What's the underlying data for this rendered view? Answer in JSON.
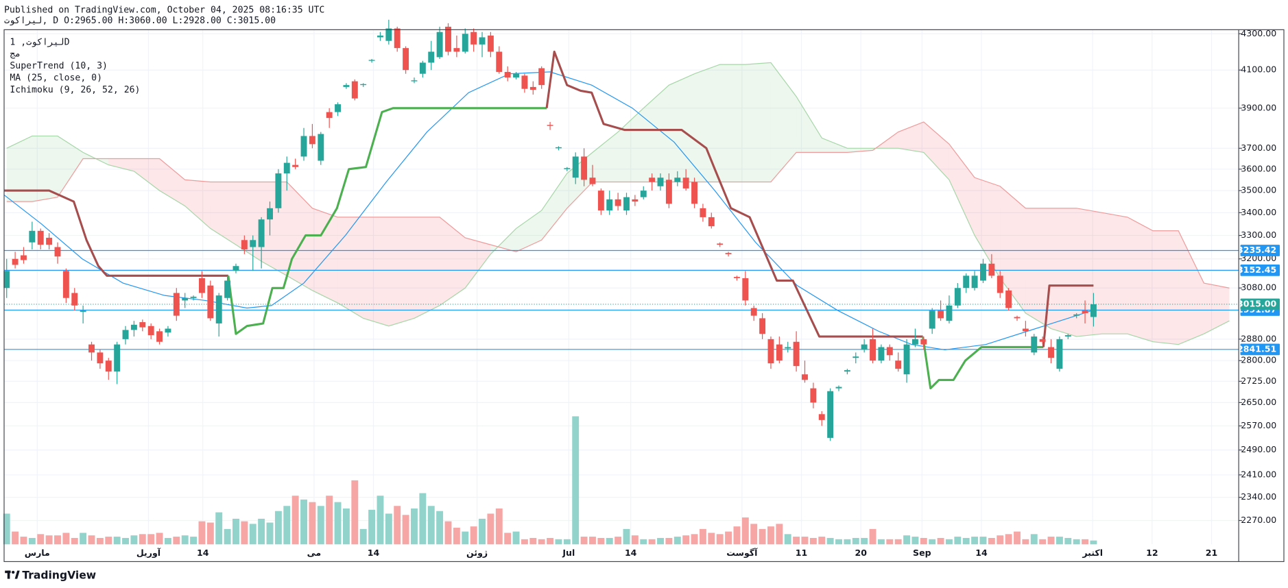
{
  "header": {
    "published": "Published on TradingView.com, October 04, 2025 08:16:35 UTC",
    "ohlc": "لیراکوت, D O:2965.00 H:3060.00 L:2928.00 C:3015.00"
  },
  "legend": [
    "لیراکوت, 1D",
    "مج",
    "SuperTrend (10, 3)",
    "MA (25, close, 0)",
    "Ichimoku (9, 26, 52, 26)"
  ],
  "brand": "TradingView",
  "chart_data": {
    "type": "candlestick",
    "log_scale": true,
    "grid": true,
    "up_color": "#26a69a",
    "down_color": "#ef5350",
    "xlim": [
      -0.3,
      145.1
    ],
    "ylim": [
      2200,
      4323
    ],
    "yticks": [
      {
        "value": 4300,
        "label": "4300.00"
      },
      {
        "value": 4100,
        "label": "4100.00"
      },
      {
        "value": 3900,
        "label": "3900.00"
      },
      {
        "value": 3700,
        "label": "3700.00"
      },
      {
        "value": 3600,
        "label": "3600.00"
      },
      {
        "value": 3500,
        "label": "3500.00"
      },
      {
        "value": 3400,
        "label": "3400.00"
      },
      {
        "value": 3300,
        "label": "3300.00"
      },
      {
        "value": 3200,
        "label": "3200.00"
      },
      {
        "value": 3080,
        "label": "3080.00"
      },
      {
        "value": 2880,
        "label": "2880.00"
      },
      {
        "value": 2800,
        "label": "2800.00"
      },
      {
        "value": 2725,
        "label": "2725.00"
      },
      {
        "value": 2650,
        "label": "2650.00"
      },
      {
        "value": 2570,
        "label": "2570.00"
      },
      {
        "value": 2490,
        "label": "2490.00"
      },
      {
        "value": 2410,
        "label": "2410.00"
      },
      {
        "value": 2340,
        "label": "2340.00"
      },
      {
        "value": 2270,
        "label": "2270.00"
      }
    ],
    "xticks": [
      {
        "value": 3.6,
        "label": "مارس"
      },
      {
        "value": 16.7,
        "label": "آوریل"
      },
      {
        "value": 23.1,
        "label": "14"
      },
      {
        "value": 36.2,
        "label": "می"
      },
      {
        "value": 43.2,
        "label": "14"
      },
      {
        "value": 55.4,
        "label": "ژوئن"
      },
      {
        "value": 66.2,
        "label": "Jul"
      },
      {
        "value": 73.5,
        "label": "14"
      },
      {
        "value": 86.6,
        "label": "آگوست"
      },
      {
        "value": 93.6,
        "label": "11"
      },
      {
        "value": 100.6,
        "label": "20"
      },
      {
        "value": 107.8,
        "label": "Sep"
      },
      {
        "value": 114.8,
        "label": "14"
      },
      {
        "value": 127.9,
        "label": "اکتبر"
      },
      {
        "value": 134.9,
        "label": "12"
      },
      {
        "value": 141.9,
        "label": "21"
      }
    ],
    "ohlc": [
      [
        3080,
        3200,
        3040,
        3150
      ],
      [
        3200,
        3230,
        3160,
        3175
      ],
      [
        3215,
        3250,
        3180,
        3195
      ],
      [
        3270,
        3360,
        3240,
        3320
      ],
      [
        3320,
        3330,
        3240,
        3260
      ],
      [
        3290,
        3310,
        3240,
        3260
      ],
      [
        3250,
        3270,
        3180,
        3210
      ],
      [
        3150,
        3160,
        3020,
        3040
      ],
      [
        3060,
        3080,
        2990,
        3010
      ],
      [
        2985,
        3010,
        2940,
        2990
      ],
      [
        2860,
        2870,
        2800,
        2830
      ],
      [
        2830,
        2840,
        2770,
        2790
      ],
      [
        2800,
        2810,
        2730,
        2760
      ],
      [
        2760,
        2870,
        2715,
        2860
      ],
      [
        2880,
        2930,
        2860,
        2915
      ],
      [
        2915,
        2950,
        2890,
        2935
      ],
      [
        2945,
        2955,
        2910,
        2925
      ],
      [
        2930,
        2940,
        2880,
        2895
      ],
      [
        2910,
        2920,
        2860,
        2870
      ],
      [
        2905,
        2930,
        2890,
        2920
      ],
      [
        3060,
        3080,
        2950,
        2970
      ],
      [
        3030,
        3060,
        3000,
        3040
      ],
      [
        3040,
        3050,
        3030,
        3045
      ],
      [
        3120,
        3150,
        3040,
        3060
      ],
      [
        3090,
        3110,
        2950,
        2960
      ],
      [
        2940,
        3060,
        2890,
        3050
      ],
      [
        3040,
        3130,
        3030,
        3110
      ],
      [
        3150,
        3180,
        3140,
        3170
      ],
      [
        3280,
        3300,
        3220,
        3240
      ],
      [
        3250,
        3300,
        3150,
        3280
      ],
      [
        3250,
        3380,
        3160,
        3370
      ],
      [
        3370,
        3450,
        3300,
        3420
      ],
      [
        3420,
        3600,
        3400,
        3580
      ],
      [
        3580,
        3660,
        3500,
        3630
      ],
      [
        3620,
        3650,
        3600,
        3610
      ],
      [
        3660,
        3800,
        3640,
        3760
      ],
      [
        3760,
        3820,
        3700,
        3720
      ],
      [
        3640,
        3780,
        3620,
        3770
      ],
      [
        3880,
        3900,
        3800,
        3850
      ],
      [
        3880,
        3930,
        3860,
        3920
      ],
      [
        4010,
        4030,
        4000,
        4020
      ],
      [
        4040,
        4050,
        3940,
        3950
      ],
      [
        4020,
        4030,
        4010,
        4025
      ],
      [
        4150,
        4160,
        4140,
        4155
      ],
      [
        4280,
        4310,
        4260,
        4290
      ],
      [
        4260,
        4380,
        4240,
        4330
      ],
      [
        4330,
        4340,
        4200,
        4220
      ],
      [
        4220,
        4230,
        4080,
        4100
      ],
      [
        4040,
        4060,
        4030,
        4045
      ],
      [
        4080,
        4150,
        4060,
        4140
      ],
      [
        4140,
        4260,
        4100,
        4200
      ],
      [
        4170,
        4340,
        4160,
        4310
      ],
      [
        4340,
        4360,
        4180,
        4200
      ],
      [
        4220,
        4290,
        4170,
        4200
      ],
      [
        4200,
        4330,
        4190,
        4300
      ],
      [
        4310,
        4330,
        4200,
        4240
      ],
      [
        4240,
        4310,
        4170,
        4280
      ],
      [
        4290,
        4310,
        4170,
        4200
      ],
      [
        4200,
        4230,
        4080,
        4090
      ],
      [
        4090,
        4120,
        4040,
        4060
      ],
      [
        4060,
        4090,
        4050,
        4080
      ],
      [
        4070,
        4080,
        3980,
        4000
      ],
      [
        4010,
        4040,
        3970,
        3995
      ],
      [
        4110,
        4120,
        4000,
        4020
      ],
      [
        3815,
        3830,
        3790,
        3810
      ],
      [
        3700,
        3710,
        3690,
        3705
      ],
      [
        3600,
        3610,
        3590,
        3605
      ],
      [
        3560,
        3680,
        3530,
        3660
      ],
      [
        3660,
        3700,
        3520,
        3550
      ],
      [
        3560,
        3620,
        3520,
        3530
      ],
      [
        3500,
        3510,
        3390,
        3410
      ],
      [
        3410,
        3500,
        3390,
        3460
      ],
      [
        3460,
        3490,
        3410,
        3430
      ],
      [
        3410,
        3490,
        3390,
        3470
      ],
      [
        3460,
        3480,
        3430,
        3450
      ],
      [
        3470,
        3520,
        3460,
        3500
      ],
      [
        3560,
        3580,
        3500,
        3540
      ],
      [
        3520,
        3580,
        3500,
        3560
      ],
      [
        3550,
        3580,
        3420,
        3440
      ],
      [
        3540,
        3590,
        3520,
        3560
      ],
      [
        3560,
        3600,
        3500,
        3510
      ],
      [
        3540,
        3560,
        3420,
        3440
      ],
      [
        3420,
        3440,
        3360,
        3380
      ],
      [
        3380,
        3400,
        3330,
        3340
      ],
      [
        3265,
        3270,
        3250,
        3260
      ],
      [
        3225,
        3230,
        3210,
        3220
      ],
      [
        3125,
        3130,
        3110,
        3120
      ],
      [
        3120,
        3150,
        3010,
        3030
      ],
      [
        3000,
        3010,
        2950,
        2970
      ],
      [
        2960,
        2980,
        2880,
        2900
      ],
      [
        2880,
        2890,
        2770,
        2790
      ],
      [
        2860,
        2890,
        2790,
        2800
      ],
      [
        2845,
        2870,
        2830,
        2850
      ],
      [
        2870,
        2910,
        2760,
        2780
      ],
      [
        2750,
        2800,
        2720,
        2730
      ],
      [
        2700,
        2720,
        2630,
        2650
      ],
      [
        2610,
        2620,
        2570,
        2590
      ],
      [
        2530,
        2700,
        2520,
        2690
      ],
      [
        2700,
        2710,
        2690,
        2705
      ],
      [
        2760,
        2770,
        2750,
        2765
      ],
      [
        2810,
        2830,
        2790,
        2815
      ],
      [
        2840,
        2880,
        2830,
        2860
      ],
      [
        2880,
        2920,
        2790,
        2800
      ],
      [
        2800,
        2860,
        2790,
        2850
      ],
      [
        2850,
        2860,
        2800,
        2820
      ],
      [
        2800,
        2830,
        2760,
        2770
      ],
      [
        2750,
        2880,
        2720,
        2860
      ],
      [
        2860,
        2920,
        2850,
        2880
      ],
      [
        2880,
        2890,
        2840,
        2860
      ],
      [
        2920,
        3000,
        2900,
        2990
      ],
      [
        2990,
        3030,
        2950,
        2960
      ],
      [
        2950,
        3050,
        2940,
        3010
      ],
      [
        3010,
        3100,
        3000,
        3080
      ],
      [
        3080,
        3140,
        3060,
        3130
      ],
      [
        3080,
        3150,
        3070,
        3130
      ],
      [
        3110,
        3200,
        3100,
        3180
      ],
      [
        3180,
        3220,
        3120,
        3130
      ],
      [
        3130,
        3150,
        3040,
        3060
      ],
      [
        3070,
        3080,
        2990,
        3000
      ],
      [
        2965,
        2970,
        2950,
        2960
      ],
      [
        2920,
        2950,
        2890,
        2910
      ],
      [
        2830,
        2900,
        2820,
        2890
      ],
      [
        2880,
        2890,
        2860,
        2870
      ],
      [
        2850,
        2880,
        2790,
        2810
      ],
      [
        2770,
        2890,
        2760,
        2880
      ],
      [
        2890,
        2900,
        2880,
        2895
      ],
      [
        2970,
        2980,
        2960,
        2975
      ],
      [
        2990,
        3030,
        2940,
        2980
      ],
      [
        2965,
        3060,
        2928,
        3015
      ]
    ],
    "volume": {
      "ylim": [
        0,
        100
      ],
      "up_color": "#92d3cb",
      "down_color": "#f6a7a5",
      "values": [
        24,
        10,
        6,
        5,
        8,
        7,
        7,
        9,
        5,
        9,
        7,
        5,
        6,
        6,
        5,
        7,
        8,
        8,
        9,
        5,
        6,
        7,
        6,
        18,
        17,
        25,
        12,
        20,
        18,
        16,
        20,
        17,
        26,
        30,
        38,
        35,
        33,
        30,
        38,
        33,
        28,
        50,
        12,
        27,
        38,
        24,
        30,
        23,
        28,
        40,
        30,
        26,
        18,
        13,
        10,
        14,
        20,
        24,
        28,
        9,
        10,
        4,
        5,
        4,
        5,
        4,
        4,
        100,
        6,
        6,
        5,
        5,
        6,
        12,
        7,
        4,
        4,
        5,
        5,
        6,
        7,
        8,
        12,
        9,
        8,
        10,
        14,
        21,
        16,
        12,
        14,
        16,
        8,
        6,
        6,
        5,
        6,
        5,
        4,
        4,
        5,
        5,
        12,
        4,
        4,
        4,
        7,
        6,
        5,
        4,
        5,
        4,
        6,
        5,
        6,
        6,
        5,
        7,
        8,
        10,
        4,
        8,
        4,
        6,
        6,
        5,
        4,
        4,
        3
      ]
    },
    "ma": {
      "color": "#2196f3",
      "x": [
        -0.3,
        4.1,
        8.9,
        13.7,
        18.6,
        23.4,
        28.3,
        31.2,
        35,
        39.9,
        44.7,
        49.5,
        54.4,
        59.2,
        64,
        68.9,
        73.7,
        78.6,
        83.4,
        88.2,
        93.1,
        97.9,
        102.7,
        106.6,
        110.5,
        115.3,
        120.2,
        125,
        128
      ],
      "values": [
        3480,
        3350,
        3200,
        3100,
        3050,
        3030,
        3000,
        3010,
        3100,
        3300,
        3540,
        3780,
        3980,
        4080,
        4090,
        4020,
        3900,
        3730,
        3500,
        3270,
        3090,
        2990,
        2910,
        2860,
        2840,
        2860,
        2910,
        2960,
        2992
      ]
    },
    "supertrend": {
      "segments": [
        {
          "color": "#a64d4d",
          "x": [
            -0.3,
            5,
            7.9,
            9.4,
            10.8,
            11.8,
            26.1
          ],
          "values": [
            3500,
            3500,
            3450,
            3280,
            3170,
            3130,
            3130
          ]
        },
        {
          "color": "#4caf50",
          "x": [
            26.1,
            27,
            28.3,
            30.2,
            31.3,
            32.6,
            33.6,
            35.2,
            37,
            38.9,
            40.3,
            42.3,
            44.2,
            45.5,
            63.6
          ],
          "values": [
            3130,
            2900,
            2930,
            2940,
            3080,
            3080,
            3200,
            3300,
            3300,
            3420,
            3600,
            3610,
            3880,
            3900,
            3900
          ]
        },
        {
          "color": "#a64d4d",
          "x": [
            63.6,
            64.5,
            66,
            67.6,
            68.9,
            70.3,
            72.8,
            79.5,
            82.4,
            83.4,
            85.3,
            87.5,
            90.7,
            92.6,
            95.7,
            107.9
          ],
          "values": [
            3900,
            4200,
            4020,
            3990,
            3980,
            3820,
            3790,
            3790,
            3700,
            3600,
            3420,
            3380,
            3110,
            3110,
            2890,
            2890
          ]
        },
        {
          "color": "#4caf50",
          "x": [
            107.9,
            108.8,
            109.8,
            111.5,
            112.9,
            114.8,
            122.1
          ],
          "values": [
            2890,
            2700,
            2730,
            2730,
            2800,
            2850,
            2850
          ]
        },
        {
          "color": "#a64d4d",
          "x": [
            122.1,
            122.8,
            128
          ],
          "values": [
            2850,
            3090,
            3090
          ]
        }
      ]
    },
    "ichimoku": {
      "up_fill": "rgba(76,175,80,0.10)",
      "down_fill": "rgba(242,54,69,0.12)",
      "span_a_color": "#a5d6a7",
      "span_b_color": "#ef9a9a",
      "x": [
        0,
        3,
        6,
        9,
        12,
        15,
        18,
        21,
        24,
        27,
        30,
        33,
        36,
        39,
        42,
        45,
        48,
        51,
        54,
        57,
        60,
        63,
        66,
        69,
        72,
        75,
        78,
        81,
        84,
        87,
        90,
        93,
        96,
        99,
        102,
        105,
        108,
        111,
        114,
        117,
        120,
        123,
        126,
        129,
        132,
        135,
        138,
        141,
        144
      ],
      "span_a": [
        3700,
        3760,
        3760,
        3680,
        3620,
        3590,
        3500,
        3430,
        3330,
        3260,
        3190,
        3130,
        3070,
        3020,
        2960,
        2930,
        2960,
        3010,
        3080,
        3220,
        3330,
        3410,
        3580,
        3680,
        3780,
        3900,
        4020,
        4080,
        4130,
        4130,
        4140,
        3960,
        3750,
        3700,
        3700,
        3700,
        3680,
        3550,
        3300,
        3120,
        2980,
        2920,
        2890,
        2900,
        2900,
        2870,
        2860,
        2900,
        2950
      ],
      "span_b": [
        3450,
        3450,
        3470,
        3650,
        3650,
        3650,
        3650,
        3550,
        3540,
        3540,
        3540,
        3540,
        3420,
        3380,
        3380,
        3380,
        3380,
        3380,
        3290,
        3260,
        3230,
        3280,
        3420,
        3540,
        3540,
        3540,
        3540,
        3540,
        3540,
        3540,
        3540,
        3680,
        3680,
        3680,
        3690,
        3780,
        3830,
        3720,
        3560,
        3520,
        3420,
        3420,
        3420,
        3400,
        3380,
        3320,
        3320,
        3100,
        3080
      ]
    },
    "hline_color": "#2196f3",
    "hlines": [
      3235.42,
      3152.45,
      2991.87,
      2841.51
    ],
    "last_price": {
      "value": 3015,
      "label": "3015.00"
    }
  }
}
